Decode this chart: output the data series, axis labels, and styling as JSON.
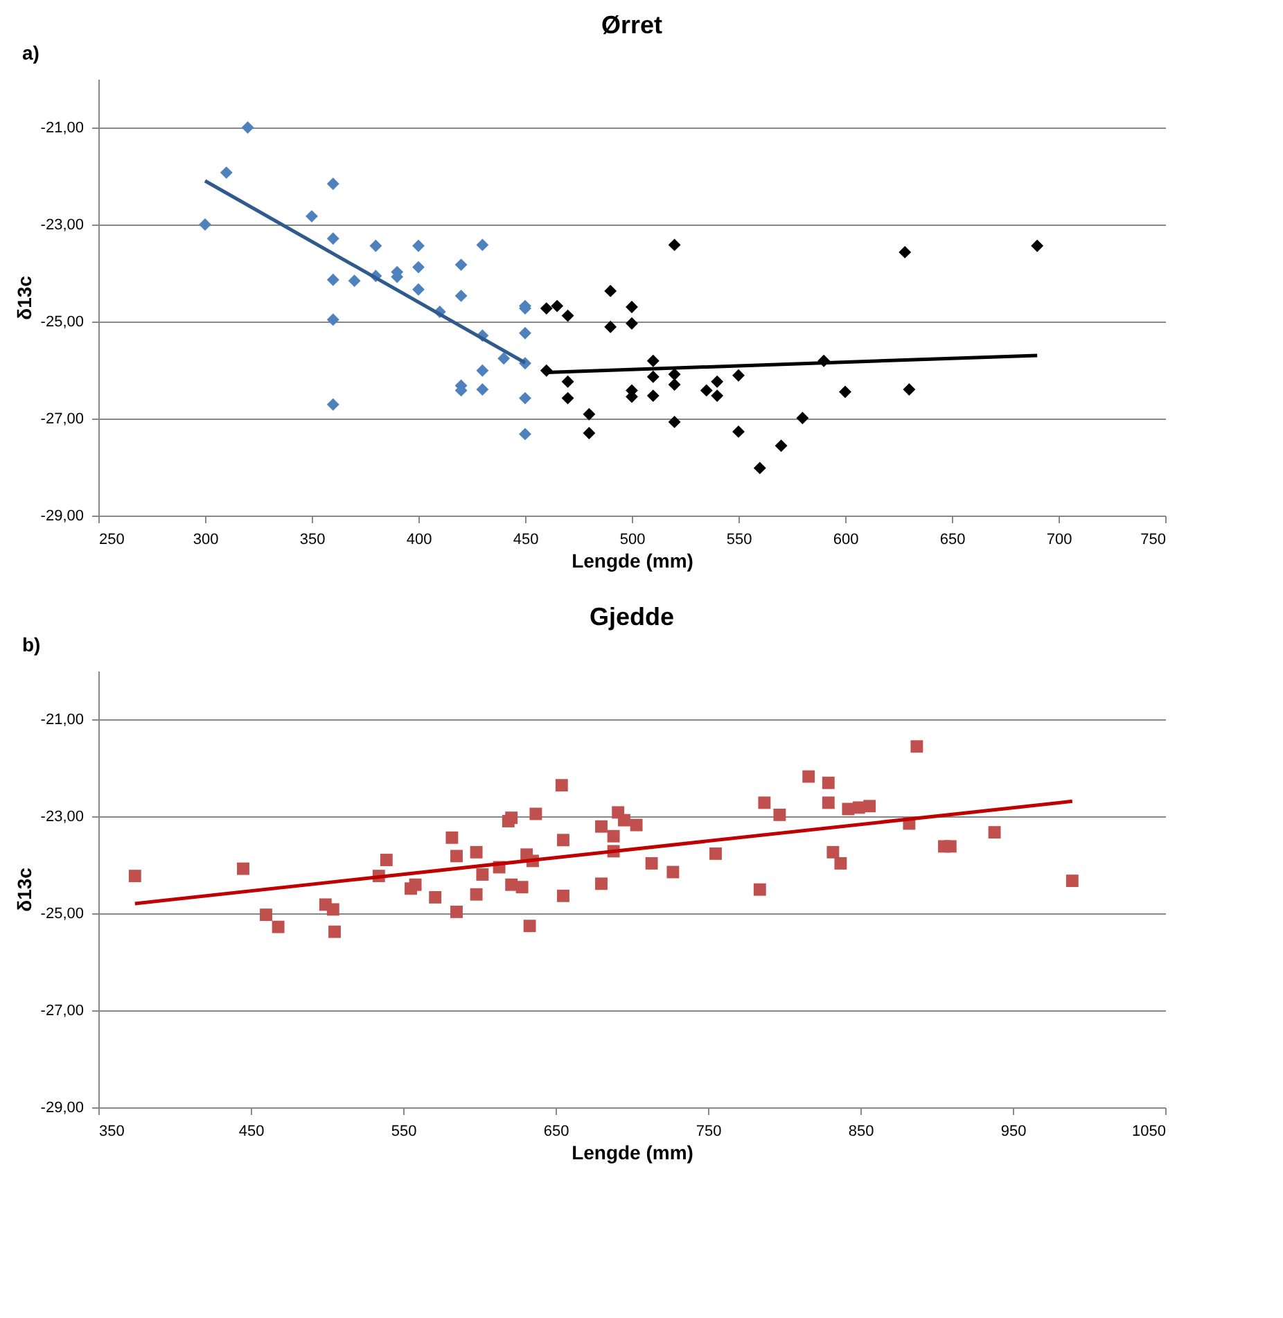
{
  "chart_data": [
    {
      "type": "scatter",
      "title": "Ørret",
      "xlabel": "Lengde (mm)",
      "ylabel": "δ13c",
      "annotations": [
        "a)"
      ],
      "marker": "diamond",
      "grid": "y",
      "xlim": [
        250,
        750
      ],
      "xticks": [
        250,
        300,
        350,
        400,
        450,
        500,
        550,
        600,
        650,
        700,
        750
      ],
      "ylim": [
        -29,
        -20
      ],
      "yticks": [
        {
          "value": -29,
          "label": "-29,00"
        },
        {
          "value": -27,
          "label": "-27,00"
        },
        {
          "value": -25,
          "label": "-25,00"
        },
        {
          "value": -23,
          "label": "-23,00"
        },
        {
          "value": -21,
          "label": "-21,00"
        }
      ],
      "series": [
        {
          "color": "#4f81bd",
          "x": [
            300,
            310,
            320,
            350,
            360,
            360,
            360,
            360,
            360,
            370,
            380,
            380,
            390,
            390,
            400,
            400,
            400,
            410,
            420,
            420,
            420,
            420,
            430,
            430,
            430,
            430,
            440,
            450,
            450,
            450,
            450,
            450,
            450
          ],
          "values": [
            -23.0,
            -21.93,
            -21.0,
            -22.83,
            -22.16,
            -23.29,
            -24.14,
            -24.96,
            -26.71,
            -24.16,
            -23.44,
            -24.06,
            -23.98,
            -24.08,
            -23.44,
            -23.88,
            -24.34,
            -24.8,
            -23.83,
            -24.47,
            -26.32,
            -26.42,
            -23.42,
            -25.29,
            -26.01,
            -26.4,
            -25.76,
            -24.68,
            -24.73,
            -25.24,
            -25.86,
            -26.58,
            -27.32
          ]
        },
        {
          "color": "#000000",
          "x": [
            460,
            465,
            470,
            460,
            470,
            470,
            480,
            480,
            490,
            490,
            500,
            500,
            500,
            500,
            510,
            510,
            510,
            520,
            520,
            520,
            520,
            535,
            540,
            540,
            550,
            550,
            560,
            570,
            580,
            590,
            600,
            628,
            630,
            690
          ],
          "values": [
            -24.73,
            -24.68,
            -24.88,
            -26.01,
            -26.24,
            -26.58,
            -26.91,
            -27.3,
            -24.37,
            -25.11,
            -24.7,
            -25.04,
            -26.42,
            -26.55,
            -25.81,
            -26.14,
            -26.53,
            -23.42,
            -26.09,
            -26.3,
            -27.07,
            -26.42,
            -26.53,
            -26.24,
            -26.11,
            -27.27,
            -28.02,
            -27.56,
            -26.99,
            -25.81,
            -26.45,
            -23.57,
            -26.4,
            -23.44
          ]
        },
        {
          "type": "line",
          "color": "#2e5a8c",
          "marker": "none",
          "x": [
            300,
            450
          ],
          "values": [
            -22.1,
            -25.85
          ]
        },
        {
          "type": "line",
          "color": "#000000",
          "marker": "none",
          "x": [
            460,
            690
          ],
          "values": [
            -26.05,
            -25.7
          ]
        }
      ]
    },
    {
      "type": "scatter",
      "title": "Gjedde",
      "xlabel": "Lengde (mm)",
      "ylabel": "δ13c",
      "annotations": [
        "b)"
      ],
      "marker": "square",
      "grid": "y",
      "xlim": [
        350,
        1050
      ],
      "xticks": [
        350,
        450,
        550,
        650,
        750,
        850,
        950,
        1050
      ],
      "ylim": [
        -29,
        -20
      ],
      "yticks": [
        {
          "value": -29,
          "label": "-29,00"
        },
        {
          "value": -27,
          "label": "-27,00"
        },
        {
          "value": -25,
          "label": "-25,00"
        },
        {
          "value": -23,
          "label": "-23,00"
        },
        {
          "value": -21,
          "label": "-21,00"
        }
      ],
      "series": [
        {
          "color": "#c0504d",
          "x": [
            374,
            445,
            460,
            468,
            499,
            504,
            505,
            534,
            539,
            555,
            558,
            571,
            582,
            585,
            585,
            598,
            598,
            602,
            613,
            619,
            621,
            621,
            628,
            631,
            633,
            635,
            637,
            654,
            655,
            655,
            680,
            680,
            688,
            688,
            691,
            695,
            703,
            713,
            727,
            755,
            784,
            787,
            797,
            816,
            829,
            829,
            832,
            837,
            842,
            849,
            856,
            882,
            887,
            905,
            909,
            938,
            989
          ],
          "values": [
            -24.23,
            -24.08,
            -25.03,
            -25.28,
            -24.82,
            -24.92,
            -25.38,
            -24.23,
            -23.9,
            -24.49,
            -24.41,
            -24.67,
            -23.44,
            -23.82,
            -24.97,
            -23.74,
            -24.61,
            -24.2,
            -24.05,
            -23.1,
            -23.03,
            -24.41,
            -24.46,
            -23.79,
            -25.26,
            -23.92,
            -22.95,
            -22.36,
            -23.49,
            -24.64,
            -23.21,
            -24.39,
            -23.41,
            -23.72,
            -22.92,
            -23.08,
            -23.18,
            -23.97,
            -24.15,
            -23.77,
            -24.51,
            -22.72,
            -22.97,
            -22.18,
            -22.31,
            -22.72,
            -23.74,
            -23.97,
            -22.85,
            -22.82,
            -22.79,
            -23.15,
            -21.56,
            -23.62,
            -23.62,
            -23.33,
            -24.33
          ]
        },
        {
          "type": "line",
          "color": "#c00000",
          "marker": "none",
          "x": [
            374,
            989
          ],
          "values": [
            -24.8,
            -22.69
          ]
        }
      ]
    }
  ]
}
